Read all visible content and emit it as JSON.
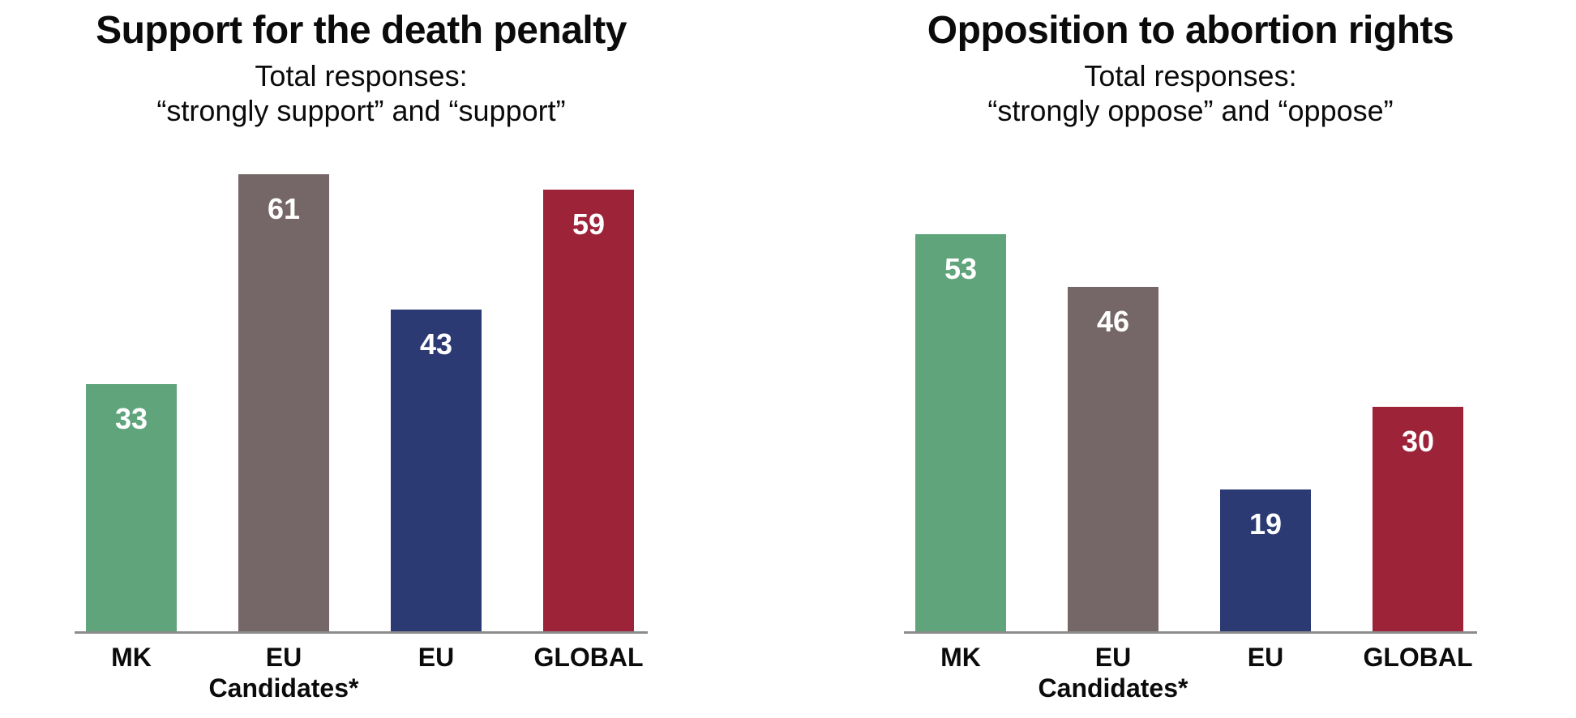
{
  "page": {
    "background_color": "#ffffff",
    "text_color": "#0b0b0b",
    "axis_line_color": "#8c8c8c"
  },
  "chart_data": [
    {
      "type": "bar",
      "title": "Support for the death penalty",
      "subtitle_lines": [
        "Total responses:",
        "“strongly support” and “support”"
      ],
      "categories": [
        "MK",
        "EU\nCandidates*",
        "EU",
        "GLOBAL"
      ],
      "values": [
        33,
        61,
        43,
        59
      ],
      "bar_colors": [
        "#5FA47B",
        "#756667",
        "#2C3A74",
        "#9D2339"
      ],
      "value_label_color": "#FFFFFF",
      "xlabel": "",
      "ylabel": "",
      "ylim": [
        0,
        65
      ],
      "grid": false,
      "legend": false,
      "value_labels_position": "inside-top"
    },
    {
      "type": "bar",
      "title": "Opposition to abortion rights",
      "subtitle_lines": [
        "Total responses:",
        "“strongly oppose” and “oppose”"
      ],
      "categories": [
        "MK",
        "EU\nCandidates*",
        "EU",
        "GLOBAL"
      ],
      "values": [
        53,
        46,
        19,
        30
      ],
      "bar_colors": [
        "#5FA47B",
        "#756667",
        "#2C3A74",
        "#9D2339"
      ],
      "value_label_color": "#FFFFFF",
      "xlabel": "",
      "ylabel": "",
      "ylim": [
        0,
        65
      ],
      "grid": false,
      "legend": false,
      "value_labels_position": "inside-top"
    }
  ]
}
